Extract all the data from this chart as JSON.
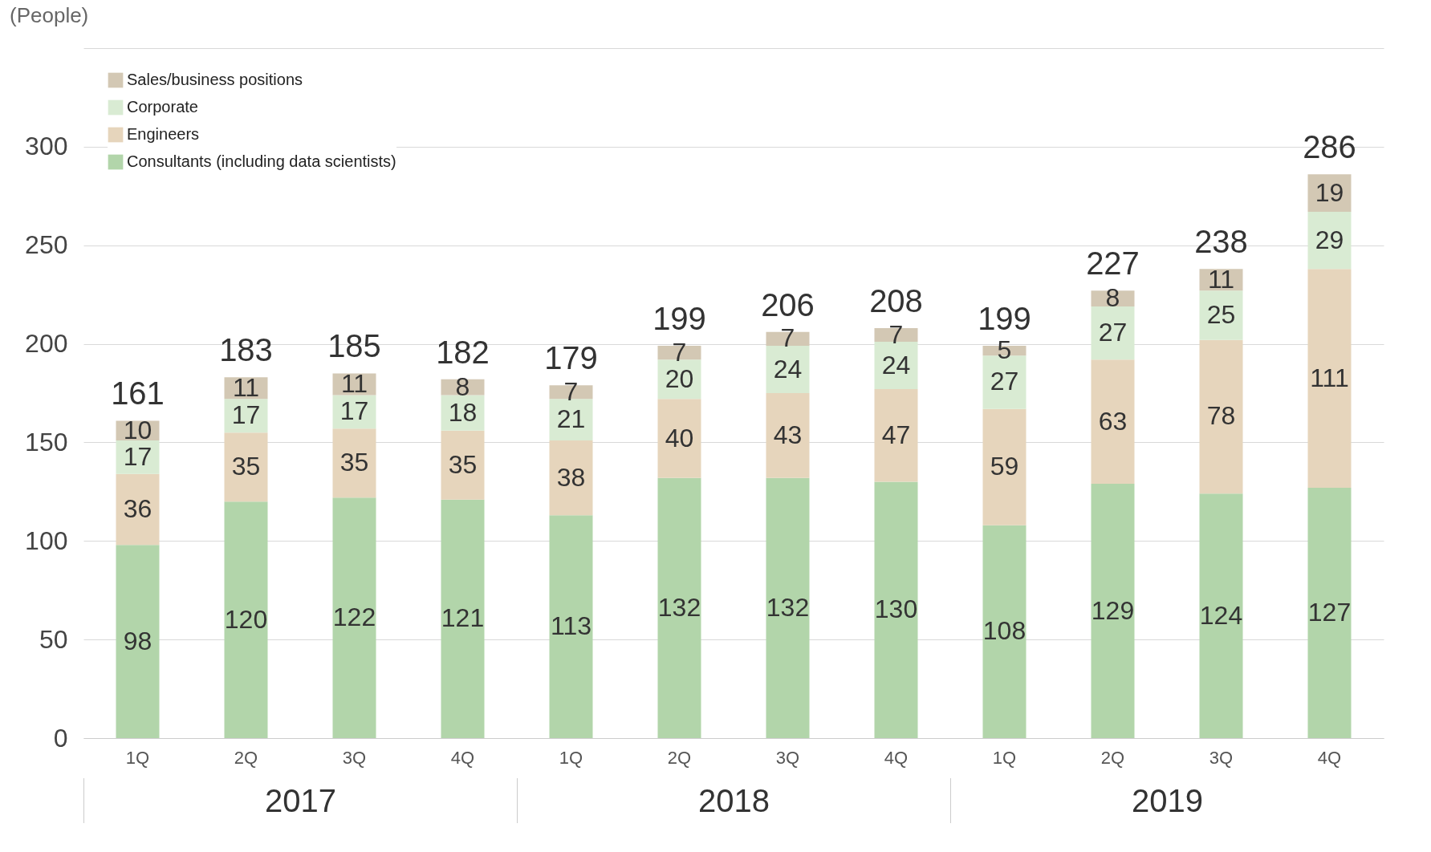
{
  "chart_data": {
    "type": "bar",
    "stacked": true,
    "ylabel": "(People)",
    "categories": [
      "1Q",
      "2Q",
      "3Q",
      "4Q",
      "1Q",
      "2Q",
      "3Q",
      "4Q",
      "1Q",
      "2Q",
      "3Q",
      "4Q"
    ],
    "series": [
      {
        "name": "Consultants (including data scientists)",
        "color": "#b2d5aa",
        "values": [
          98,
          120,
          122,
          121,
          113,
          132,
          132,
          130,
          108,
          129,
          124,
          127
        ]
      },
      {
        "name": "Engineers",
        "color": "#e6d5bc",
        "values": [
          36,
          35,
          35,
          35,
          38,
          40,
          43,
          47,
          59,
          63,
          78,
          111
        ]
      },
      {
        "name": "Corporate",
        "color": "#d9ebd3",
        "values": [
          17,
          17,
          17,
          18,
          21,
          20,
          24,
          24,
          27,
          27,
          25,
          29
        ]
      },
      {
        "name": "Sales/business positions",
        "color": "#d3c8b4",
        "values": [
          10,
          11,
          11,
          8,
          7,
          7,
          7,
          7,
          5,
          8,
          11,
          19
        ]
      }
    ],
    "totals": [
      "161",
      "183",
      "185",
      "182",
      "179",
      "199",
      "206",
      "208",
      "199",
      "227",
      "238",
      "286"
    ],
    "data_labels": true,
    "ylim": [
      0,
      350
    ],
    "yticks": [
      0,
      50,
      100,
      150,
      200,
      250,
      300,
      {
        "value": 350,
        "label": null
      }
    ],
    "grid": "y",
    "legend": "top left",
    "annotations": [
      "2017",
      "2018",
      "2019"
    ]
  }
}
